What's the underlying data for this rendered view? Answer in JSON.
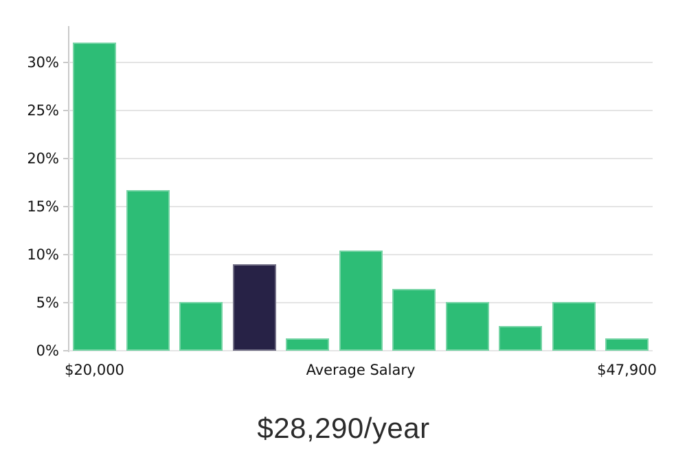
{
  "chart_data": {
    "type": "bar",
    "title": "",
    "xlabel": "",
    "ylabel": "",
    "values": [
      32.1,
      16.7,
      5.1,
      9.0,
      1.3,
      10.4,
      6.4,
      5.1,
      2.6,
      5.1,
      1.3
    ],
    "highlight_index": 3,
    "ytick_labels": [
      "0%",
      "5%",
      "10%",
      "15%",
      "20%",
      "25%",
      "30%"
    ],
    "ytick_values": [
      0,
      5,
      10,
      15,
      20,
      25,
      30
    ],
    "ylim": [
      0,
      33.8
    ],
    "grid": true,
    "legend": false,
    "x_axis_labels": [
      {
        "text": "$20,000",
        "anchor": "first-bar"
      },
      {
        "text": "Average Salary",
        "anchor": "center"
      },
      {
        "text": "$47,900",
        "anchor": "last-bar"
      }
    ],
    "colors": {
      "bar": "#2dbd76",
      "highlight_bar": "#272246",
      "gridline": "#e4e4e4",
      "axis_line": "#c9c9c9",
      "label_text": "#111111"
    }
  },
  "caption": {
    "text": "$28,290/year",
    "color": "#2b2b2b"
  }
}
